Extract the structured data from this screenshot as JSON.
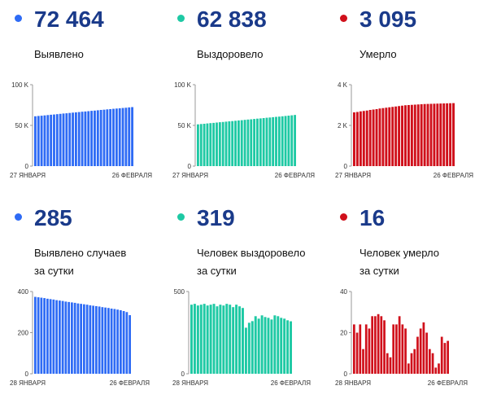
{
  "panels": [
    {
      "value": "72 464",
      "label_lines": [
        "Выявлено"
      ],
      "color": "#2e6bf5",
      "chart_data": {
        "type": "bar",
        "x_labels": [
          "27 ЯНВАРЯ",
          "26 ФЕВРАЛЯ"
        ],
        "y_ticks": [
          {
            "v": 0,
            "t": "0"
          },
          {
            "v": 50000,
            "t": "50 K"
          },
          {
            "v": 100000,
            "t": "100 K"
          }
        ],
        "ylim": [
          0,
          100000
        ],
        "values": [
          61200,
          61600,
          61900,
          62300,
          62700,
          63100,
          63400,
          63800,
          64200,
          64600,
          64900,
          65300,
          65700,
          66000,
          66400,
          66800,
          67100,
          67500,
          67900,
          68200,
          68600,
          69000,
          69300,
          69700,
          70000,
          70400,
          70700,
          71000,
          71400,
          71700,
          72100,
          72464
        ]
      }
    },
    {
      "value": "62 838",
      "label_lines": [
        "Выздоровело"
      ],
      "color": "#1ec9a4",
      "chart_data": {
        "type": "bar",
        "x_labels": [
          "27 ЯНВАРЯ",
          "26 ФЕВРАЛЯ"
        ],
        "y_ticks": [
          {
            "v": 0,
            "t": "0"
          },
          {
            "v": 50000,
            "t": "50 K"
          },
          {
            "v": 100000,
            "t": "100 K"
          }
        ],
        "ylim": [
          0,
          100000
        ],
        "values": [
          51300,
          51700,
          52000,
          52400,
          52800,
          53100,
          53500,
          53900,
          54200,
          54600,
          55000,
          55300,
          55700,
          56100,
          56400,
          56800,
          57200,
          57500,
          57900,
          58300,
          58600,
          59000,
          59400,
          59700,
          60100,
          60500,
          60800,
          61200,
          61600,
          62000,
          62400,
          62838
        ]
      }
    },
    {
      "value": "3 095",
      "label_lines": [
        "Умерло"
      ],
      "color": "#d0101b",
      "chart_data": {
        "type": "bar",
        "x_labels": [
          "27 ЯНВАРЯ",
          "26 ФЕВРАЛЯ"
        ],
        "y_ticks": [
          {
            "v": 0,
            "t": "0"
          },
          {
            "v": 2000,
            "t": "2 K"
          },
          {
            "v": 4000,
            "t": "4 K"
          }
        ],
        "ylim": [
          0,
          4000
        ],
        "values": [
          2640,
          2660,
          2690,
          2710,
          2730,
          2760,
          2780,
          2800,
          2830,
          2850,
          2870,
          2890,
          2910,
          2930,
          2950,
          2970,
          2990,
          3000,
          3010,
          3020,
          3030,
          3040,
          3050,
          3055,
          3060,
          3065,
          3070,
          3075,
          3080,
          3085,
          3090,
          3095
        ]
      }
    },
    {
      "value": "285",
      "label_lines": [
        "Выявлено случаев",
        "за сутки"
      ],
      "color": "#2e6bf5",
      "chart_data": {
        "type": "bar",
        "x_labels": [
          "28 ЯНВАРЯ",
          "26 ФЕВРАЛЯ"
        ],
        "y_ticks": [
          {
            "v": 0,
            "t": "0"
          },
          {
            "v": 200,
            "t": "200"
          },
          {
            "v": 400,
            "t": "400"
          }
        ],
        "ylim": [
          0,
          400
        ],
        "values": [
          374,
          372,
          370,
          368,
          365,
          363,
          361,
          358,
          356,
          354,
          351,
          349,
          347,
          345,
          342,
          340,
          338,
          336,
          333,
          331,
          329,
          327,
          324,
          322,
          320,
          317,
          315,
          312,
          309,
          305,
          300,
          285
        ]
      }
    },
    {
      "value": "319",
      "label_lines": [
        "Человек выздоровело",
        "за сутки"
      ],
      "color": "#1ec9a4",
      "chart_data": {
        "type": "bar",
        "x_labels": [
          "28 ЯНВАРЯ",
          "26 ФЕВРАЛЯ"
        ],
        "y_ticks": [
          {
            "v": 0,
            "t": "0"
          },
          {
            "v": 500,
            "t": "500"
          }
        ],
        "ylim": [
          0,
          500
        ],
        "values": [
          420,
          425,
          415,
          420,
          425,
          415,
          420,
          425,
          410,
          420,
          415,
          425,
          420,
          405,
          420,
          410,
          400,
          280,
          310,
          320,
          350,
          335,
          355,
          345,
          340,
          330,
          355,
          350,
          340,
          335,
          325,
          319
        ]
      }
    },
    {
      "value": "16",
      "label_lines": [
        "Человек умерло",
        "за сутки"
      ],
      "color": "#d0101b",
      "chart_data": {
        "type": "bar",
        "x_labels": [
          "28 ЯНВАРЯ",
          "26 ФЕВРАЛЯ"
        ],
        "y_ticks": [
          {
            "v": 0,
            "t": "0"
          },
          {
            "v": 20,
            "t": "20"
          },
          {
            "v": 40,
            "t": "40"
          }
        ],
        "ylim": [
          0,
          40
        ],
        "values": [
          24,
          20,
          24,
          12,
          24,
          22,
          28,
          28,
          29,
          28,
          26,
          10,
          8,
          24,
          24,
          28,
          24,
          22,
          5,
          10,
          12,
          18,
          22,
          25,
          20,
          12,
          10,
          3,
          5,
          18,
          15,
          16
        ]
      }
    }
  ]
}
